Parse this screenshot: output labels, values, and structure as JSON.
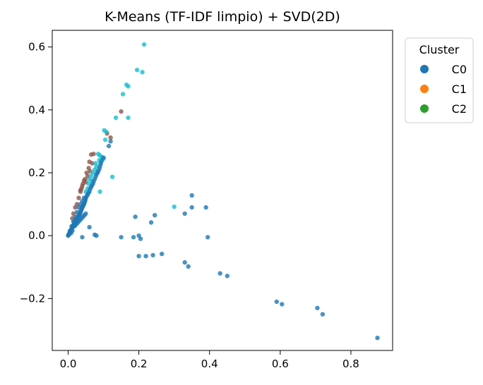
{
  "chart_data": {
    "type": "scatter",
    "title": "K-Means (TF-IDF limpio) + SVD(2D)",
    "xlabel": "",
    "ylabel": "",
    "xlim": [
      -0.045,
      0.918
    ],
    "ylim": [
      -0.365,
      0.653
    ],
    "xticks": [
      0.0,
      0.2,
      0.4,
      0.6,
      0.8
    ],
    "xtick_labels": [
      "0.0",
      "0.2",
      "0.4",
      "0.6",
      "0.8"
    ],
    "yticks": [
      -0.2,
      0.0,
      0.2,
      0.4,
      0.6
    ],
    "ytick_labels": [
      "−0.2",
      "0.0",
      "0.2",
      "0.4",
      "0.6"
    ],
    "grid": false,
    "legend": {
      "title": "Cluster",
      "placement": "outside-top-right",
      "entries": [
        {
          "label": "C0",
          "color": "#1f77b4"
        },
        {
          "label": "C1",
          "color": "#ff7f0e"
        },
        {
          "label": "C2",
          "color": "#2ca02c"
        }
      ]
    },
    "series": [
      {
        "color": "#8c564b",
        "points": [
          [
            0.065,
            0.258
          ],
          [
            0.072,
            0.26
          ],
          [
            0.06,
            0.235
          ],
          [
            0.058,
            0.215
          ],
          [
            0.052,
            0.2
          ],
          [
            0.055,
            0.19
          ],
          [
            0.048,
            0.18
          ],
          [
            0.042,
            0.165
          ],
          [
            0.04,
            0.158
          ],
          [
            0.038,
            0.15
          ],
          [
            0.05,
            0.17
          ],
          [
            0.062,
            0.205
          ],
          [
            0.068,
            0.23
          ],
          [
            0.15,
            0.395
          ],
          [
            0.12,
            0.312
          ],
          [
            0.11,
            0.325
          ],
          [
            0.035,
            0.14
          ],
          [
            0.045,
            0.175
          ],
          [
            0.03,
            0.12
          ],
          [
            0.025,
            0.1
          ],
          [
            0.02,
            0.09
          ],
          [
            0.015,
            0.07
          ],
          [
            0.012,
            0.055
          ],
          [
            0.035,
            0.145
          ]
        ]
      },
      {
        "color": "#17becf",
        "points": [
          [
            0.215,
            0.608
          ],
          [
            0.195,
            0.527
          ],
          [
            0.21,
            0.52
          ],
          [
            0.165,
            0.48
          ],
          [
            0.17,
            0.475
          ],
          [
            0.155,
            0.45
          ],
          [
            0.135,
            0.375
          ],
          [
            0.17,
            0.375
          ],
          [
            0.102,
            0.335
          ],
          [
            0.108,
            0.33
          ],
          [
            0.105,
            0.305
          ],
          [
            0.09,
            0.255
          ],
          [
            0.085,
            0.26
          ],
          [
            0.095,
            0.25
          ],
          [
            0.1,
            0.245
          ],
          [
            0.125,
            0.187
          ],
          [
            0.09,
            0.14
          ],
          [
            0.3,
            0.092
          ],
          [
            0.08,
            0.22
          ],
          [
            0.075,
            0.21
          ],
          [
            0.07,
            0.2
          ],
          [
            0.065,
            0.19
          ],
          [
            0.06,
            0.18
          ],
          [
            0.058,
            0.165
          ],
          [
            0.055,
            0.15
          ],
          [
            0.05,
            0.14
          ],
          [
            0.078,
            0.23
          ],
          [
            0.088,
            0.24
          ],
          [
            0.092,
            0.232
          ],
          [
            0.066,
            0.175
          ]
        ]
      },
      {
        "color": "#1f77b4",
        "points": [
          [
            0.875,
            -0.325
          ],
          [
            0.72,
            -0.25
          ],
          [
            0.705,
            -0.23
          ],
          [
            0.605,
            -0.218
          ],
          [
            0.59,
            -0.21
          ],
          [
            0.45,
            -0.128
          ],
          [
            0.43,
            -0.12
          ],
          [
            0.34,
            -0.098
          ],
          [
            0.33,
            -0.085
          ],
          [
            0.265,
            -0.058
          ],
          [
            0.24,
            -0.062
          ],
          [
            0.22,
            -0.065
          ],
          [
            0.2,
            -0.065
          ],
          [
            0.395,
            -0.005
          ],
          [
            0.39,
            0.09
          ],
          [
            0.35,
            0.128
          ],
          [
            0.35,
            0.09
          ],
          [
            0.33,
            0.07
          ],
          [
            0.245,
            0.065
          ],
          [
            0.235,
            0.042
          ],
          [
            0.19,
            0.06
          ],
          [
            0.2,
            0.0
          ],
          [
            0.205,
            -0.01
          ],
          [
            0.15,
            -0.005
          ],
          [
            0.185,
            -0.005
          ],
          [
            0.08,
            0.0
          ],
          [
            0.075,
            0.003
          ],
          [
            0.06,
            0.027
          ],
          [
            0.04,
            -0.005
          ],
          [
            0.115,
            0.285
          ],
          [
            0.12,
            0.3
          ],
          [
            0.1,
            0.248
          ],
          [
            0.09,
            0.22
          ],
          [
            0.085,
            0.205
          ],
          [
            0.08,
            0.195
          ],
          [
            0.075,
            0.18
          ],
          [
            0.07,
            0.165
          ],
          [
            0.065,
            0.155
          ],
          [
            0.06,
            0.14
          ],
          [
            0.055,
            0.13
          ],
          [
            0.05,
            0.12
          ],
          [
            0.048,
            0.11
          ],
          [
            0.045,
            0.1
          ],
          [
            0.042,
            0.095
          ],
          [
            0.04,
            0.09
          ],
          [
            0.038,
            0.085
          ],
          [
            0.036,
            0.078
          ],
          [
            0.034,
            0.072
          ],
          [
            0.032,
            0.068
          ],
          [
            0.03,
            0.065
          ],
          [
            0.028,
            0.06
          ],
          [
            0.026,
            0.056
          ],
          [
            0.024,
            0.052
          ],
          [
            0.022,
            0.048
          ],
          [
            0.02,
            0.044
          ],
          [
            0.018,
            0.04
          ],
          [
            0.016,
            0.035
          ],
          [
            0.014,
            0.031
          ],
          [
            0.012,
            0.027
          ],
          [
            0.01,
            0.022
          ],
          [
            0.008,
            0.018
          ],
          [
            0.006,
            0.013
          ],
          [
            0.004,
            0.009
          ],
          [
            0.002,
            0.004
          ],
          [
            0.0,
            0.0
          ],
          [
            0.001,
            0.002
          ],
          [
            0.003,
            0.006
          ],
          [
            0.005,
            0.01
          ],
          [
            0.007,
            0.015
          ],
          [
            0.009,
            0.02
          ],
          [
            0.011,
            0.024
          ],
          [
            0.013,
            0.029
          ],
          [
            0.015,
            0.033
          ],
          [
            0.017,
            0.038
          ],
          [
            0.019,
            0.042
          ],
          [
            0.021,
            0.046
          ],
          [
            0.023,
            0.05
          ],
          [
            0.025,
            0.055
          ],
          [
            0.027,
            0.058
          ],
          [
            0.029,
            0.062
          ],
          [
            0.031,
            0.066
          ],
          [
            0.033,
            0.07
          ],
          [
            0.035,
            0.075
          ],
          [
            0.037,
            0.08
          ],
          [
            0.039,
            0.087
          ],
          [
            0.041,
            0.092
          ],
          [
            0.043,
            0.097
          ],
          [
            0.046,
            0.104
          ],
          [
            0.049,
            0.115
          ],
          [
            0.052,
            0.125
          ],
          [
            0.057,
            0.135
          ],
          [
            0.062,
            0.148
          ],
          [
            0.067,
            0.16
          ],
          [
            0.072,
            0.172
          ],
          [
            0.078,
            0.188
          ],
          [
            0.083,
            0.2
          ],
          [
            0.088,
            0.212
          ],
          [
            0.092,
            0.228
          ],
          [
            0.095,
            0.238
          ],
          [
            0.03,
            0.09
          ],
          [
            0.035,
            0.1
          ],
          [
            0.04,
            0.11
          ],
          [
            0.045,
            0.12
          ],
          [
            0.025,
            0.075
          ],
          [
            0.02,
            0.06
          ],
          [
            0.015,
            0.045
          ],
          [
            0.01,
            0.03
          ],
          [
            0.005,
            0.015
          ],
          [
            0.018,
            0.03
          ],
          [
            0.022,
            0.035
          ],
          [
            0.026,
            0.04
          ],
          [
            0.03,
            0.045
          ],
          [
            0.034,
            0.05
          ],
          [
            0.038,
            0.055
          ],
          [
            0.042,
            0.06
          ],
          [
            0.046,
            0.065
          ],
          [
            0.05,
            0.07
          ],
          [
            0.012,
            0.015
          ],
          [
            0.008,
            0.008
          ]
        ]
      }
    ]
  }
}
